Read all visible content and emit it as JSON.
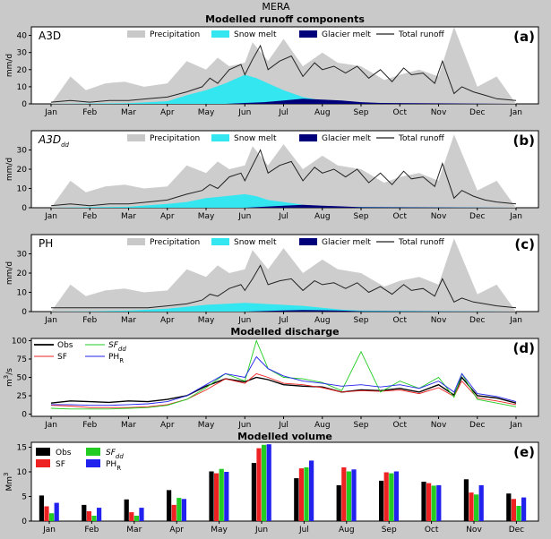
{
  "figure": {
    "suptitle": "MERA",
    "title_runoff": "Modelled runoff components",
    "title_discharge": "Modelled discharge",
    "title_volume": "Modelled volume"
  },
  "colors": {
    "precipitation": "#c8c8c8",
    "snow_melt": "#33e6f0",
    "glacier_melt": "#00007a",
    "total_runoff": "#222222",
    "obs": "#000000",
    "sf": "#ee2222",
    "sf_dd": "#22cc22",
    "ph_r": "#2222ee",
    "panel_bg": "#ffffff",
    "figure_bg": "#c9c9c9"
  },
  "months": [
    "Jan",
    "Feb",
    "Mar",
    "Apr",
    "May",
    "Jun",
    "Jul",
    "Aug",
    "Sep",
    "Oct",
    "Nov",
    "Dec",
    "Jan"
  ],
  "chart_data": [
    {
      "type": "area",
      "panel": "(a)",
      "name_main": "A3D",
      "name_sub": "",
      "ylabel": "mm/d",
      "ylim": [
        0,
        45
      ],
      "yticks": [
        0,
        10,
        20,
        30,
        40
      ],
      "legend": [
        "Precipitation",
        "Snow melt",
        "Glacier melt",
        "Total runoff"
      ],
      "series": [
        {
          "name": "Precipitation",
          "x_month": [
            0.0,
            0.5,
            0.9,
            1.4,
            1.9,
            2.4,
            3.0,
            3.5,
            4.0,
            4.3,
            4.6,
            5.0,
            5.2,
            5.6,
            6.0,
            6.5,
            7.0,
            7.4,
            8.0,
            8.6,
            9.0,
            9.5,
            10.0,
            10.4,
            11.0,
            11.5,
            12.0
          ],
          "values": [
            0,
            16,
            8,
            12,
            13,
            10,
            12,
            25,
            20,
            27,
            22,
            24,
            36,
            25,
            38,
            22,
            30,
            24,
            22,
            14,
            17,
            20,
            16,
            45,
            10,
            16,
            0
          ]
        },
        {
          "name": "Snow melt",
          "x_month": [
            0.0,
            1.0,
            2.0,
            3.0,
            3.5,
            4.0,
            4.5,
            5.0,
            5.3,
            5.6,
            6.0,
            6.5,
            7.0,
            7.5,
            8.0,
            12.0
          ],
          "values": [
            0,
            0.2,
            0.4,
            1.5,
            5,
            8,
            12,
            17,
            15,
            12,
            8,
            4,
            2,
            1,
            0,
            0
          ]
        },
        {
          "name": "Glacier melt",
          "x_month": [
            0.0,
            4.5,
            5.0,
            5.5,
            6.0,
            6.5,
            7.0,
            7.5,
            8.0,
            8.5,
            12.0
          ],
          "values": [
            0,
            0,
            0.5,
            1,
            2,
            3,
            2.5,
            2,
            1,
            0.5,
            0
          ]
        },
        {
          "name": "Total runoff",
          "x_month": [
            0.0,
            0.5,
            1.0,
            1.5,
            2.0,
            2.5,
            3.0,
            3.5,
            3.9,
            4.1,
            4.3,
            4.6,
            4.9,
            5.0,
            5.2,
            5.4,
            5.6,
            5.9,
            6.2,
            6.5,
            6.8,
            7.0,
            7.3,
            7.6,
            7.9,
            8.2,
            8.5,
            8.8,
            9.1,
            9.3,
            9.6,
            9.9,
            10.1,
            10.4,
            10.6,
            10.9,
            11.2,
            11.5,
            12.0
          ],
          "values": [
            1,
            2,
            1,
            2,
            2,
            3,
            4,
            7,
            10,
            15,
            12,
            20,
            23,
            17,
            26,
            34,
            20,
            25,
            28,
            16,
            24,
            20,
            22,
            18,
            22,
            15,
            20,
            13,
            21,
            17,
            18,
            12,
            25,
            6,
            10,
            7,
            5,
            3,
            2
          ]
        }
      ]
    },
    {
      "type": "area",
      "panel": "(b)",
      "name_main": "A3D",
      "name_sub": "dd",
      "ylabel": "mm/d",
      "ylim": [
        0,
        40
      ],
      "yticks": [
        0,
        10,
        20,
        30
      ],
      "legend": [
        "Precipitation",
        "Snow melt",
        "Glacier melt",
        "Total runoff"
      ],
      "series": [
        {
          "name": "Precipitation",
          "x_month": [
            0.0,
            0.5,
            0.9,
            1.4,
            1.9,
            2.4,
            3.0,
            3.5,
            4.0,
            4.3,
            4.6,
            5.0,
            5.2,
            5.6,
            6.0,
            6.5,
            7.0,
            7.4,
            8.0,
            8.6,
            9.0,
            9.5,
            10.0,
            10.4,
            11.0,
            11.5,
            12.0
          ],
          "values": [
            0,
            14,
            8,
            11,
            12,
            10,
            11,
            22,
            18,
            24,
            20,
            22,
            32,
            22,
            33,
            20,
            27,
            22,
            20,
            13,
            16,
            18,
            14,
            38,
            9,
            14,
            0
          ]
        },
        {
          "name": "Snow melt",
          "x_month": [
            0.0,
            1.0,
            2.0,
            3.0,
            3.5,
            4.0,
            4.5,
            5.0,
            5.3,
            5.6,
            6.0,
            6.5,
            7.0,
            12.0
          ],
          "values": [
            0,
            0.3,
            0.5,
            2,
            3,
            5,
            6,
            7,
            6,
            4,
            3,
            1.5,
            0.5,
            0
          ]
        },
        {
          "name": "Glacier melt",
          "x_month": [
            0.0,
            5.0,
            5.5,
            6.0,
            6.5,
            7.0,
            7.5,
            8.0,
            12.0
          ],
          "values": [
            0,
            0,
            0.5,
            1,
            1.5,
            1,
            0.7,
            0.3,
            0
          ]
        },
        {
          "name": "Total runoff",
          "x_month": [
            0.0,
            0.5,
            1.0,
            1.5,
            2.0,
            2.5,
            3.0,
            3.5,
            3.9,
            4.1,
            4.3,
            4.6,
            4.9,
            5.0,
            5.2,
            5.4,
            5.6,
            5.9,
            6.2,
            6.5,
            6.8,
            7.0,
            7.3,
            7.6,
            7.9,
            8.2,
            8.5,
            8.8,
            9.1,
            9.3,
            9.6,
            9.9,
            10.1,
            10.4,
            10.6,
            10.9,
            11.2,
            11.5,
            12.0
          ],
          "values": [
            1,
            2,
            1,
            2,
            2,
            3,
            4,
            7,
            9,
            12,
            10,
            16,
            18,
            14,
            22,
            30,
            18,
            22,
            24,
            14,
            21,
            18,
            20,
            16,
            20,
            13,
            18,
            12,
            19,
            15,
            16,
            11,
            23,
            5,
            9,
            6,
            4,
            3,
            2
          ]
        }
      ]
    },
    {
      "type": "area",
      "panel": "(c)",
      "name_main": "PH",
      "name_sub": "",
      "ylabel": "mm/d",
      "ylim": [
        0,
        40
      ],
      "yticks": [
        0,
        10,
        20,
        30
      ],
      "legend": [
        "Precipitation",
        "Snow melt",
        "Glacier melt",
        "Total runoff"
      ],
      "series": [
        {
          "name": "Precipitation",
          "x_month": [
            0.0,
            0.5,
            0.9,
            1.4,
            1.9,
            2.4,
            3.0,
            3.5,
            4.0,
            4.3,
            4.6,
            5.0,
            5.2,
            5.6,
            6.0,
            6.5,
            7.0,
            7.4,
            8.0,
            8.6,
            9.0,
            9.5,
            10.0,
            10.4,
            11.0,
            11.5,
            12.0
          ],
          "values": [
            0,
            14,
            8,
            11,
            12,
            10,
            11,
            22,
            18,
            24,
            20,
            22,
            32,
            22,
            33,
            20,
            27,
            22,
            20,
            13,
            16,
            18,
            14,
            38,
            9,
            14,
            0
          ]
        },
        {
          "name": "Snow melt",
          "x_month": [
            0.0,
            1.0,
            2.0,
            3.0,
            3.5,
            4.0,
            4.5,
            5.0,
            5.5,
            6.0,
            6.5,
            7.0,
            7.5,
            8.0,
            12.0
          ],
          "values": [
            0,
            0.2,
            0.5,
            1.5,
            2.5,
            3.5,
            4,
            4.5,
            4,
            3.5,
            3,
            2,
            1,
            0.5,
            0
          ]
        },
        {
          "name": "Glacier melt",
          "x_month": [
            0.0,
            5.0,
            5.5,
            6.0,
            6.5,
            7.0,
            7.5,
            8.0,
            12.0
          ],
          "values": [
            0,
            0,
            0.3,
            0.6,
            0.8,
            0.7,
            0.5,
            0.2,
            0
          ]
        },
        {
          "name": "Total runoff",
          "x_month": [
            0.0,
            0.5,
            1.0,
            1.5,
            2.0,
            2.5,
            3.0,
            3.5,
            3.9,
            4.1,
            4.3,
            4.6,
            4.9,
            5.0,
            5.2,
            5.4,
            5.6,
            5.9,
            6.2,
            6.5,
            6.8,
            7.0,
            7.3,
            7.6,
            7.9,
            8.2,
            8.5,
            8.8,
            9.1,
            9.3,
            9.6,
            9.9,
            10.1,
            10.4,
            10.6,
            10.9,
            11.2,
            11.5,
            12.0
          ],
          "values": [
            2,
            2,
            2,
            2,
            2,
            2,
            3,
            4,
            6,
            9,
            8,
            12,
            14,
            11,
            17,
            24,
            14,
            16,
            17,
            11,
            16,
            14,
            15,
            12,
            15,
            10,
            13,
            9,
            14,
            11,
            12,
            8,
            17,
            5,
            7,
            5,
            4,
            3,
            2
          ]
        }
      ]
    },
    {
      "type": "line",
      "panel": "(d)",
      "ylabel_main": "m",
      "ylabel_sup": "3",
      "ylabel_rest": "/s",
      "ylim": [
        0,
        100
      ],
      "yticks": [
        0,
        25,
        50,
        75,
        100
      ],
      "legend": [
        {
          "key": "obs",
          "main": "Obs",
          "sub": "",
          "italic": false
        },
        {
          "key": "sf",
          "main": "SF",
          "sub": "",
          "italic": false
        },
        {
          "key": "sf_dd",
          "main": "SF",
          "sub": "dd",
          "italic": true
        },
        {
          "key": "ph_r",
          "main": "PH",
          "sub": "R",
          "italic": false
        }
      ],
      "series": [
        {
          "key": "obs",
          "x_month": [
            0.0,
            0.5,
            1.0,
            1.5,
            2.0,
            2.5,
            3.0,
            3.5,
            4.0,
            4.5,
            5.0,
            5.3,
            5.6,
            6.0,
            6.5,
            7.0,
            7.5,
            8.0,
            8.5,
            9.0,
            9.5,
            10.0,
            10.4,
            10.6,
            11.0,
            11.5,
            12.0
          ],
          "values": [
            15,
            18,
            17,
            16,
            18,
            17,
            20,
            25,
            38,
            48,
            44,
            50,
            47,
            40,
            38,
            37,
            30,
            33,
            32,
            35,
            30,
            40,
            26,
            50,
            25,
            22,
            15
          ]
        },
        {
          "key": "sf",
          "x_month": [
            0.0,
            0.5,
            1.0,
            1.5,
            2.0,
            2.5,
            3.0,
            3.5,
            4.0,
            4.5,
            5.0,
            5.3,
            5.6,
            6.0,
            6.5,
            7.0,
            7.5,
            8.0,
            8.5,
            9.0,
            9.5,
            10.0,
            10.4,
            10.6,
            11.0,
            11.5,
            12.0
          ],
          "values": [
            12,
            11,
            9,
            9,
            9,
            10,
            13,
            20,
            33,
            48,
            42,
            55,
            50,
            42,
            40,
            36,
            30,
            32,
            31,
            33,
            28,
            36,
            24,
            45,
            22,
            18,
            13
          ]
        },
        {
          "key": "sf_dd",
          "x_month": [
            0.0,
            0.5,
            1.0,
            1.5,
            2.0,
            2.5,
            3.0,
            3.5,
            4.0,
            4.5,
            5.0,
            5.3,
            5.6,
            6.0,
            6.5,
            7.0,
            7.5,
            8.0,
            8.5,
            9.0,
            9.5,
            10.0,
            10.4,
            10.6,
            11.0,
            11.5,
            12.0
          ],
          "values": [
            8,
            7,
            7,
            7,
            8,
            9,
            12,
            20,
            36,
            55,
            45,
            100,
            62,
            50,
            48,
            43,
            32,
            85,
            30,
            45,
            35,
            50,
            23,
            55,
            20,
            15,
            10
          ]
        },
        {
          "key": "ph_r",
          "x_month": [
            0.0,
            0.5,
            1.0,
            1.5,
            2.0,
            2.5,
            3.0,
            3.5,
            4.0,
            4.5,
            5.0,
            5.3,
            5.6,
            6.0,
            6.5,
            7.0,
            7.5,
            8.0,
            8.5,
            9.0,
            9.5,
            10.0,
            10.4,
            10.6,
            11.0,
            11.5,
            12.0
          ],
          "values": [
            13,
            13,
            12,
            12,
            13,
            14,
            17,
            25,
            40,
            55,
            50,
            78,
            62,
            52,
            45,
            42,
            38,
            40,
            37,
            40,
            35,
            45,
            30,
            55,
            28,
            24,
            17
          ]
        }
      ]
    },
    {
      "type": "bar",
      "panel": "(e)",
      "ylabel_main": "Mm",
      "ylabel_sup": "3",
      "ylim": [
        0,
        16
      ],
      "yticks": [
        0,
        5,
        10,
        15
      ],
      "categories": [
        "Jan",
        "Feb",
        "Mar",
        "Apr",
        "May",
        "Jun",
        "Jul",
        "Aug",
        "Sep",
        "Oct",
        "Nov",
        "Dec"
      ],
      "legend": [
        {
          "key": "obs",
          "main": "Obs",
          "sub": "",
          "italic": false
        },
        {
          "key": "sf",
          "main": "SF",
          "sub": "",
          "italic": false
        },
        {
          "key": "sf_dd",
          "main": "SF",
          "sub": "dd",
          "italic": true
        },
        {
          "key": "ph_r",
          "main": "PH",
          "sub": "R",
          "italic": false
        }
      ],
      "series": [
        {
          "key": "obs",
          "values": [
            5.2,
            3.3,
            4.4,
            6.3,
            10.1,
            11.8,
            8.7,
            7.3,
            8.2,
            8.0,
            8.5,
            5.6
          ]
        },
        {
          "key": "sf",
          "values": [
            3.0,
            2.0,
            1.8,
            3.3,
            9.7,
            14.8,
            10.7,
            10.9,
            9.9,
            7.7,
            5.8,
            4.5
          ]
        },
        {
          "key": "sf_dd",
          "values": [
            1.6,
            1.1,
            1.1,
            4.7,
            10.6,
            15.5,
            10.9,
            10.1,
            9.7,
            7.2,
            5.4,
            3.1
          ]
        },
        {
          "key": "ph_r",
          "values": [
            3.7,
            2.7,
            2.7,
            4.5,
            10.0,
            15.6,
            12.3,
            10.5,
            10.1,
            7.3,
            7.3,
            4.8
          ]
        }
      ]
    }
  ]
}
